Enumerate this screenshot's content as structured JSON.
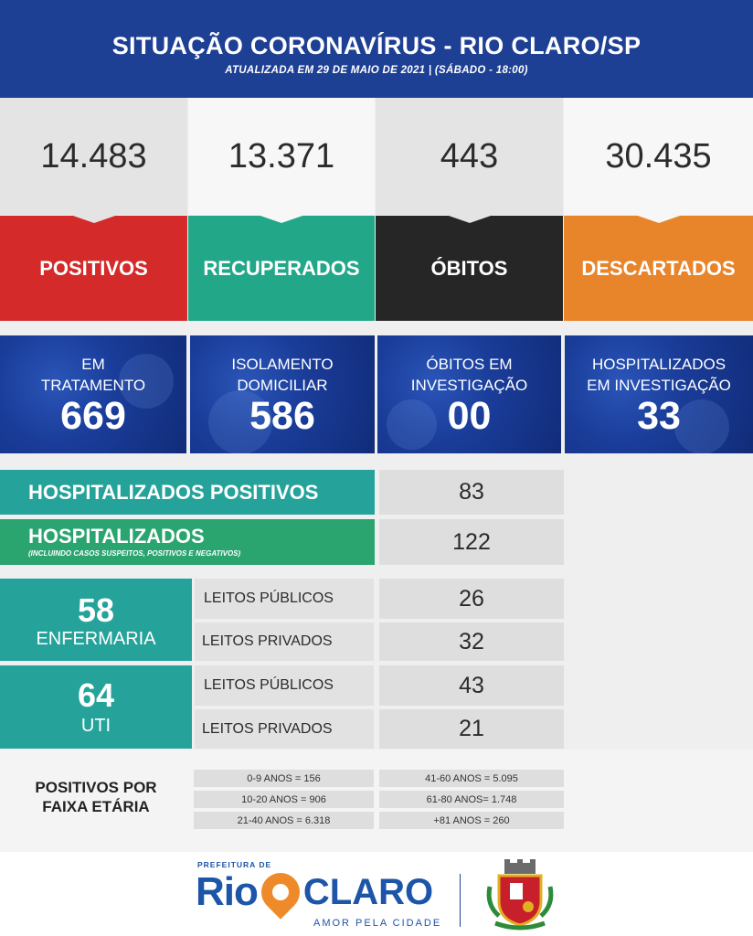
{
  "header": {
    "title": "SITUAÇÃO CORONAVÍRUS - RIO CLARO/SP",
    "subtitle": "ATUALIZADA EM 29 DE MAIO DE 2021 | (SÁBADO - 18:00)"
  },
  "top_stats": [
    {
      "value": "14.483",
      "label": "POSITIVOS",
      "color": "#d42a2a"
    },
    {
      "value": "13.371",
      "label": "RECUPERADOS",
      "color": "#22a889"
    },
    {
      "value": "443",
      "label": "ÓBITOS",
      "color": "#262626"
    },
    {
      "value": "30.435",
      "label": "DESCARTADOS",
      "color": "#e8842a"
    }
  ],
  "blue_stats": [
    {
      "line1": "EM",
      "line2": "TRATAMENTO",
      "value": "669"
    },
    {
      "line1": "ISOLAMENTO",
      "line2": "DOMICILIAR",
      "value": "586"
    },
    {
      "line1": "ÓBITOS EM",
      "line2": "INVESTIGAÇÃO",
      "value": "00"
    },
    {
      "line1": "HOSPITALIZADOS",
      "line2": "EM INVESTIGAÇÃO",
      "value": "33"
    }
  ],
  "hospitalizados_positivos": {
    "label": "HOSPITALIZADOS POSITIVOS",
    "value": "83"
  },
  "hospitalizados": {
    "label": "HOSPITALIZADOS",
    "note": "(INCLUINDO CASOS SUSPEITOS, POSITIVOS E NEGATIVOS)",
    "value": "122"
  },
  "enfermaria": {
    "value": "58",
    "label": "ENFERMARIA",
    "rows": [
      {
        "label": "LEITOS PÚBLICOS",
        "value": "26"
      },
      {
        "label": "LEITOS PRIVADOS",
        "value": "32"
      }
    ]
  },
  "uti": {
    "value": "64",
    "label": "UTI",
    "rows": [
      {
        "label": "LEITOS PÚBLICOS",
        "value": "43"
      },
      {
        "label": "LEITOS PRIVADOS",
        "value": "21"
      }
    ]
  },
  "faixa_etaria": {
    "label_line1": "POSITIVOS POR",
    "label_line2": "FAIXA ETÁRIA",
    "left": [
      "0-9 ANOS = 156",
      "10-20 ANOS = 906",
      "21-40 ANOS = 6.318"
    ],
    "right": [
      "41-60 ANOS = 5.095",
      "61-80 ANOS= 1.748",
      "+81 ANOS = 260"
    ]
  },
  "footer": {
    "prefeitura": "PREFEITURA DE",
    "rio": "Rio",
    "claro": "CLARO",
    "slogan": "AMOR PELA CIDADE"
  },
  "colors": {
    "header_blue": "#1d3f94",
    "teal": "#25a39a",
    "green": "#2aa56f",
    "logo_blue": "#1d55a8",
    "logo_orange": "#ef8a2a"
  }
}
